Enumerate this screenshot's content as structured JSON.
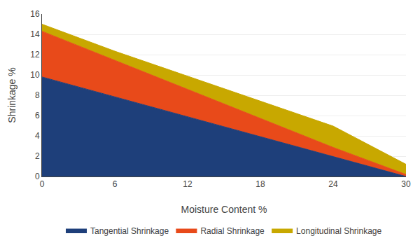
{
  "chart_data": {
    "type": "area",
    "stacked": true,
    "x": [
      0,
      6,
      12,
      18,
      24,
      30
    ],
    "series": [
      {
        "name": "Tangential Shrinkage",
        "color": "#1e3f7a",
        "values": [
          9.8,
          7.84,
          5.88,
          3.92,
          1.96,
          0.0
        ]
      },
      {
        "name": "Radial Shrinkage",
        "color": "#e84a1a",
        "values": [
          4.5,
          3.6,
          2.7,
          1.8,
          0.9,
          0.2
        ]
      },
      {
        "name": "Longitudinal Shrinkage",
        "color": "#c8a800",
        "values": [
          0.7,
          0.9,
          1.3,
          1.7,
          2.1,
          1.0
        ]
      }
    ],
    "xlabel": "Moisture Content %",
    "ylabel": "Shrinkage %",
    "xlim": [
      0,
      30
    ],
    "ylim": [
      0,
      16
    ],
    "xticks": [
      0,
      6,
      12,
      18,
      24,
      30
    ],
    "yticks": [
      0,
      2,
      4,
      6,
      8,
      10,
      12,
      14,
      16
    ],
    "grid": "y",
    "legend": "bottom"
  }
}
